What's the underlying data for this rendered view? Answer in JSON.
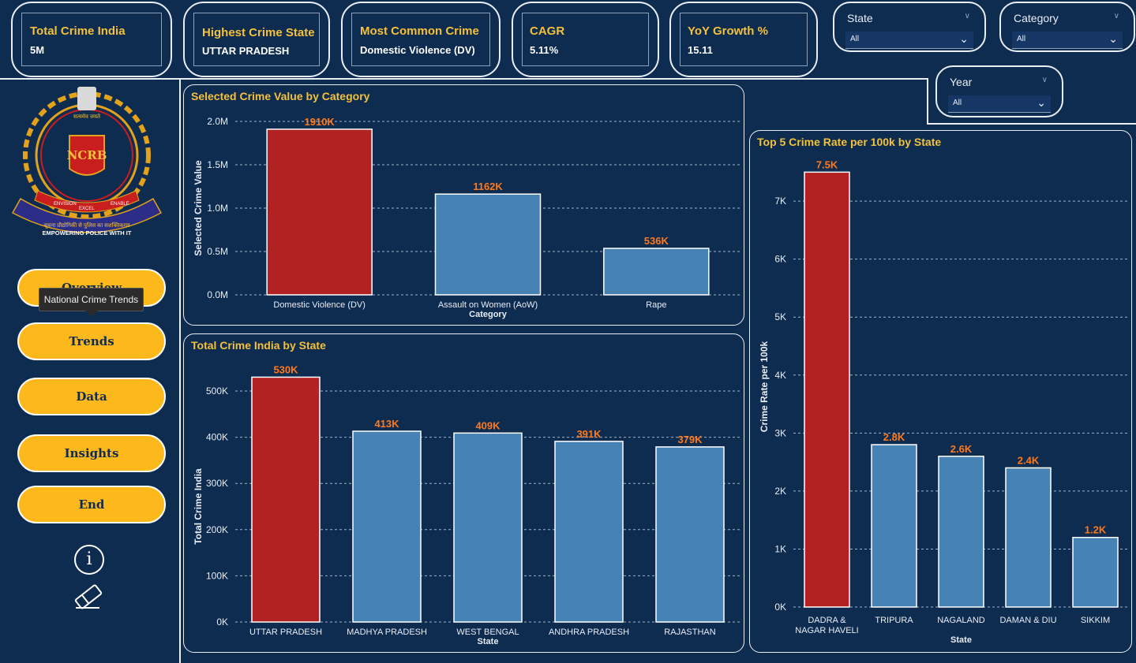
{
  "kpis": [
    {
      "title": "Total Crime India",
      "value": "5M"
    },
    {
      "title": "Highest Crime State",
      "value": "UTTAR PRADESH"
    },
    {
      "title": "Most Common Crime",
      "value": "Domestic Violence (DV)"
    },
    {
      "title": "CAGR",
      "value": "5.11%"
    },
    {
      "title": "YoY Growth %",
      "value": "15.11"
    }
  ],
  "slicers": {
    "state": {
      "label": "State",
      "value": "All"
    },
    "category": {
      "label": "Category",
      "value": "All"
    },
    "year": {
      "label": "Year",
      "value": "All"
    }
  },
  "nav": {
    "overview": "Overview",
    "trends": "Trends",
    "data": "Data",
    "insights": "Insights",
    "end": "End"
  },
  "tooltip": "National Crime Trends",
  "logo": {
    "lettering": [
      "सत्यमेव जयते",
      "NCRB",
      "EMPOWERING POLICE WITH IT",
      "सूचना प्रौद्योगिकी से पुलिस का सशक्तिकरण",
      "EXCEL",
      "ENVISION",
      "ENABLE"
    ]
  },
  "icons": {
    "info": "info-icon",
    "eraser": "eraser-icon"
  },
  "colors": {
    "highlight": "#b22222",
    "bar": "#4682b4",
    "data_label": "#ff7a1a",
    "title": "#f4c13b",
    "background": "#0e2b50"
  },
  "chart_data": [
    {
      "type": "bar",
      "title": "Selected Crime Value by Category",
      "xlabel": "Category",
      "ylabel": "Selected Crime Value",
      "categories": [
        "Domestic Violence (DV)",
        "Assault on Women (AoW)",
        "Rape"
      ],
      "values": [
        1910000,
        1162000,
        536000
      ],
      "data_labels": [
        "1910K",
        "1162K",
        "536K"
      ],
      "ylim": [
        0,
        2000000
      ],
      "yticks": [
        0,
        500000,
        1000000,
        1500000,
        2000000
      ],
      "ytick_labels": [
        "0.0M",
        "0.5M",
        "1.0M",
        "1.5M",
        "2.0M"
      ],
      "grid": true
    },
    {
      "type": "bar",
      "title": "Total Crime India by State",
      "xlabel": "State",
      "ylabel": "Total Crime India",
      "categories": [
        "UTTAR PRADESH",
        "MADHYA PRADESH",
        "WEST BENGAL",
        "ANDHRA PRADESH",
        "RAJASTHAN"
      ],
      "values": [
        530000,
        413000,
        409000,
        391000,
        379000
      ],
      "data_labels": [
        "530K",
        "413K",
        "409K",
        "391K",
        "379K"
      ],
      "ylim": [
        0,
        500000
      ],
      "yticks": [
        0,
        100000,
        200000,
        300000,
        400000,
        500000
      ],
      "ytick_labels": [
        "0K",
        "100K",
        "200K",
        "300K",
        "400K",
        "500K"
      ],
      "grid": true
    },
    {
      "type": "bar",
      "title": "Top 5 Crime Rate per 100k by State",
      "xlabel": "State",
      "ylabel": "Crime Rate per 100k",
      "categories": [
        [
          "DADRA &",
          "NAGAR HAVELI"
        ],
        [
          "TRIPURA"
        ],
        [
          "NAGALAND"
        ],
        [
          "DAMAN & DIU"
        ],
        [
          "SIKKIM"
        ]
      ],
      "values": [
        7500,
        2800,
        2600,
        2400,
        1200
      ],
      "data_labels": [
        "7.5K",
        "2.8K",
        "2.6K",
        "2.4K",
        "1.2K"
      ],
      "ylim": [
        0,
        7000
      ],
      "yticks": [
        0,
        1000,
        2000,
        3000,
        4000,
        5000,
        6000,
        7000
      ],
      "ytick_labels": [
        "0K",
        "1K",
        "2K",
        "3K",
        "4K",
        "5K",
        "6K",
        "7K"
      ],
      "grid": true
    }
  ]
}
